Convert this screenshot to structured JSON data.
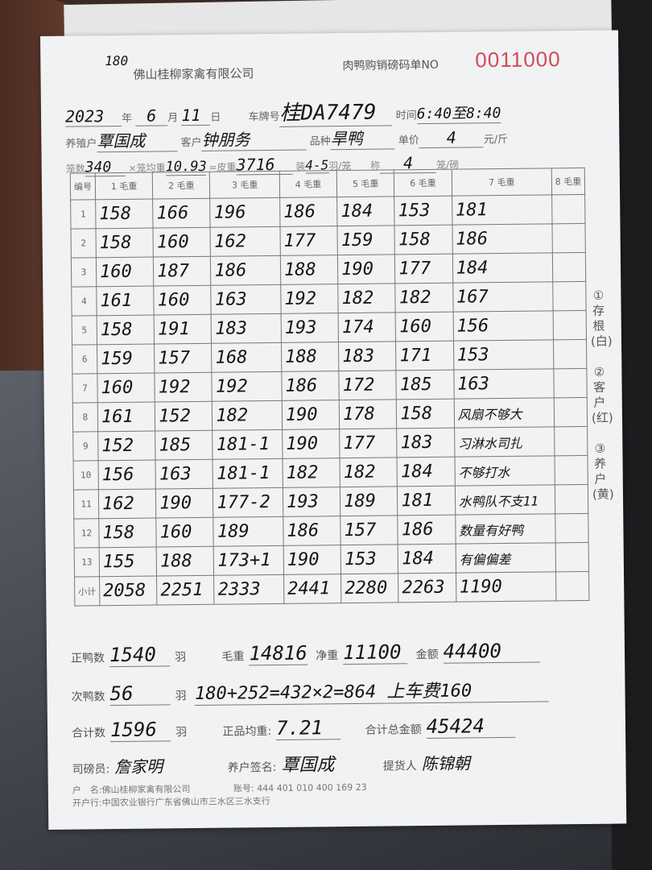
{
  "header": {
    "logo_text": "180",
    "company": "佛山桂柳家禽有限公司",
    "form_title": "肉鸭购销磅码单",
    "no_label": "NO",
    "serial": "0011000"
  },
  "info": {
    "date_year": "2023",
    "year_label": "年",
    "date_month": "6",
    "month_label": "月",
    "date_day": "11",
    "day_label": "日",
    "plate_label": "车牌号",
    "plate": "桂DA7479",
    "time_label": "时间",
    "time": "6:40至8:40",
    "seller_label": "养殖户",
    "seller": "覃国成",
    "customer_label": "客户",
    "customer": "钟朋务",
    "breed_label": "品种",
    "breed": "旱鸭",
    "price_label": "单价",
    "price": "4",
    "price_unit": "元/斤",
    "cages_label": "笼数",
    "cages": "340",
    "cage_weight_label": "×笼均重",
    "cage_weight": "10.93",
    "tare_label": "=皮重",
    "tare": "3716",
    "per_cage_label": "装",
    "per_cage": "4-5",
    "per_cage_unit": "羽/笼",
    "weigh_label": "称",
    "weigh": "4",
    "weigh_unit": "笼/磅"
  },
  "table": {
    "headers": [
      "编号",
      "1 毛重",
      "2 毛重",
      "3 毛重",
      "4 毛重",
      "5 毛重",
      "6 毛重",
      "7 毛重",
      "8 毛重"
    ],
    "rows": [
      [
        "1",
        "158",
        "166",
        "196",
        "186",
        "184",
        "153",
        "181",
        ""
      ],
      [
        "2",
        "158",
        "160",
        "162",
        "177",
        "159",
        "158",
        "186",
        ""
      ],
      [
        "3",
        "160",
        "187",
        "186",
        "188",
        "190",
        "177",
        "184",
        ""
      ],
      [
        "4",
        "161",
        "160",
        "163",
        "192",
        "182",
        "182",
        "167",
        ""
      ],
      [
        "5",
        "158",
        "191",
        "183",
        "193",
        "174",
        "160",
        "156",
        ""
      ],
      [
        "6",
        "159",
        "157",
        "168",
        "188",
        "183",
        "171",
        "153",
        ""
      ],
      [
        "7",
        "160",
        "192",
        "192",
        "186",
        "172",
        "185",
        "163",
        ""
      ],
      [
        "8",
        "161",
        "152",
        "182",
        "190",
        "178",
        "158",
        "风扇不够大",
        ""
      ],
      [
        "9",
        "152",
        "185",
        "181-1",
        "190",
        "177",
        "183",
        "习淋水司扎",
        ""
      ],
      [
        "10",
        "156",
        "163",
        "181-1",
        "182",
        "182",
        "184",
        "不够打水",
        ""
      ],
      [
        "11",
        "162",
        "190",
        "177-2",
        "193",
        "189",
        "181",
        "水鸭队不支11",
        ""
      ],
      [
        "12",
        "158",
        "160",
        "189",
        "186",
        "157",
        "186",
        "数量有好鸭",
        ""
      ],
      [
        "13",
        "155",
        "188",
        "173+1",
        "190",
        "153",
        "184",
        "有偏偏差",
        ""
      ]
    ],
    "subtotal": [
      "小计",
      "2058",
      "2251",
      "2333",
      "2441",
      "2280",
      "2263",
      "1190",
      ""
    ]
  },
  "side_labels": [
    "①存根(白)",
    "②客户(红)",
    "③养户(黄)"
  ],
  "summary": {
    "good_label": "正鸭数",
    "good": "1540",
    "unit": "羽",
    "gross_label": "毛重",
    "gross": "14816",
    "net_label": "净重",
    "net": "11100",
    "amount_label": "金额",
    "amount": "44400",
    "second_label": "次鸭数",
    "second": "56",
    "calc": "180+252=432×2=864 上车费160",
    "total_label": "合计数",
    "total": "1596",
    "avg_label": "正品均重:",
    "avg": "7.21",
    "grand_label": "合计总金额",
    "grand": "45424",
    "weigher_label": "司磅员:",
    "weigher": "詹家明",
    "farmer_label": "养户签名:",
    "farmer": "覃国成",
    "picker_label": "提货人",
    "picker": "陈锦朝"
  },
  "footer": {
    "account_name": "户　名:佛山桂柳家禽有限公司",
    "account_no": "账号: 444 401 010 400 169 23",
    "bank": "开户行:中国农业银行广东省佛山市三水区三水支行"
  }
}
